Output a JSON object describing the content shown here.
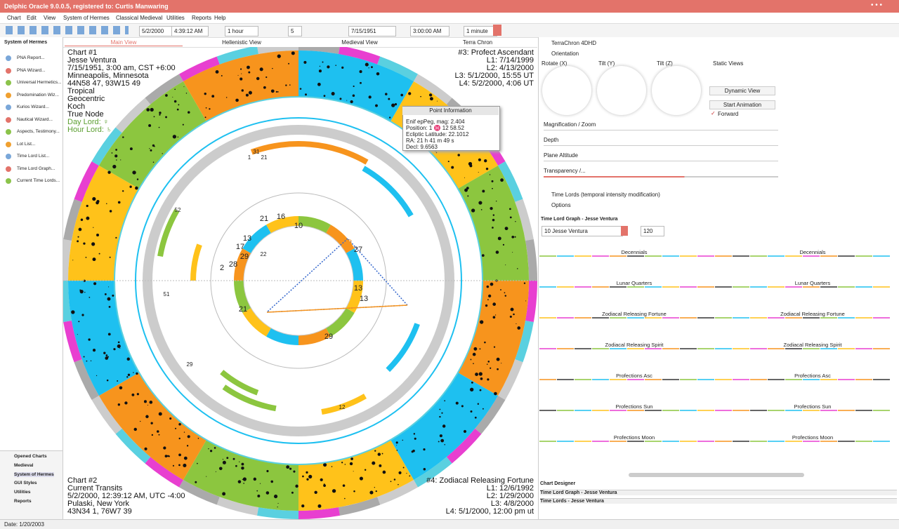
{
  "window": {
    "title": "Delphic Oracle 9.0.0.5, registered to: Curtis Manwaring"
  },
  "menu": [
    "Chart",
    "Edit",
    "View",
    "System of Hermes",
    "Classical Medieval",
    "Utilities",
    "Reports",
    "Help"
  ],
  "toolbar": {
    "date1": "5/2/2000",
    "time1": "4:39:12 AM",
    "step1": "1 hour",
    "count": "5",
    "date2": "7/15/1951",
    "time2": "3:00:00 AM",
    "step2": "1 minute"
  },
  "sidebar": {
    "header": "System of Hermes",
    "items": [
      "PNA Report...",
      "PNA Wizard...",
      "Universal Hermetics...",
      "Predomination Wiz...",
      "Kurios Wizard...",
      "Nautical Wizard...",
      "Aspects, Testimony...",
      "Lot List...",
      "Time Lord List...",
      "Time Lord Graph...",
      "Current Time Lords..."
    ],
    "nav": [
      "Opened Charts",
      "Medieval",
      "System of Hermes",
      "GUI Styles",
      "Utilities",
      "Reports"
    ]
  },
  "tabs": [
    "Main View",
    "Hellenistic View",
    "Medieval View",
    "Terra Chron"
  ],
  "chart1": [
    "Chart #1",
    "Jesse Ventura",
    "7/15/1951, 3:00 am, CST +6:00",
    "Minneapolis, Minnesota",
    "44N58 47, 93W15 49",
    "Tropical",
    "Geocentric",
    "Koch",
    "True Node",
    "Day Lord: ♀",
    "Hour Lord: ♄"
  ],
  "chart3": [
    "#3: Profect Ascendant",
    "L1: 7/14/1999",
    "L2: 4/13/2000",
    "L3: 5/1/2000, 15:55 UT",
    "L4: 5/2/2000, 4:06 UT"
  ],
  "chart2": [
    "Chart #2",
    "Current Transits",
    "5/2/2000, 12:39:12 AM, UTC -4:00",
    "Pulaski, New York",
    "43N34 1, 76W7 39"
  ],
  "chart4": [
    "#4: Zodiacal Releasing Fortune",
    "L1: 12/6/1992",
    "L2: 1/29/2000",
    "L3: 4/8/2000",
    "L4: 5/1/2000, 12:00 pm ut"
  ],
  "wheel": {
    "labels": [
      "16",
      "21",
      "10",
      "28",
      "27",
      "13",
      "13",
      "29",
      "2",
      "13",
      "17",
      "29",
      "28",
      "21",
      "12",
      "29",
      "51",
      "52",
      "1",
      "21",
      "31",
      "22"
    ]
  },
  "popup": {
    "title": "Point Information",
    "lines": [
      "Enif   epPeg, mag: 2.404",
      "Position: 1 ♓ 12 58.52",
      "Ecliptic Latitude: 22.1012",
      "RA: 21 h 41 m 49 s",
      "Decl: 9.6563"
    ]
  },
  "right": {
    "terrachron": "TerraChron 4DHD",
    "orientation": "Orientation",
    "rotate_x": "Rotate (X)",
    "tilt_y": "Tilt (Y)",
    "tilt_z": "Tilt (Z)",
    "static_views": "Static Views",
    "dynamic_view": "Dynamic View",
    "start_animation": "Start Animation",
    "forward": "Forward",
    "magnification": "Magnification / Zoom",
    "depth": "Depth",
    "plane_altitude": "Plane Altitude",
    "transparency": "Transparency /...",
    "time_lords": "Time Lords (temporal intensity modification)",
    "options": "Options",
    "graph_title": "Time Lord Graph - Jesse Ventura",
    "person": "10 Jesse Ventura",
    "years": "120",
    "graph_rows": [
      "Decennials",
      "Lunar Quarters",
      "Zodiacal Releasing Fortune",
      "Zodiacal Releasing Spirit",
      "Profections Asc",
      "Profections Sun",
      "Profections Moon"
    ],
    "designer": "Chart Designer",
    "doc_tabs": [
      "Time Lord Graph - Jesse Ventura",
      "Time Lords - Jesse Ventura"
    ]
  },
  "status": "Date: 1/20/2003"
}
